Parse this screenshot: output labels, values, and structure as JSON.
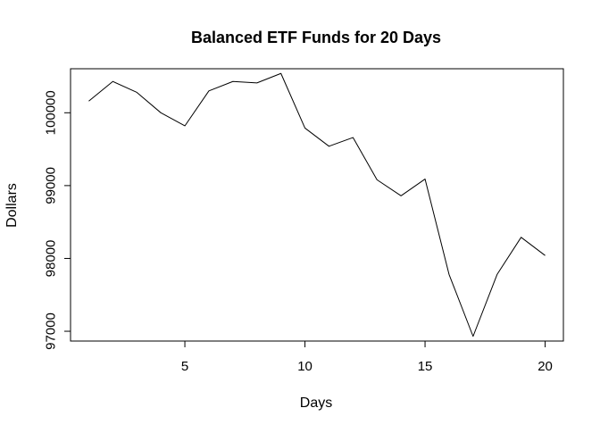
{
  "chart_data": {
    "type": "line",
    "title": "Balanced ETF Funds for 20 Days",
    "xlabel": "Days",
    "ylabel": "Dollars",
    "x": [
      1,
      2,
      3,
      4,
      5,
      6,
      7,
      8,
      9,
      10,
      11,
      12,
      13,
      14,
      15,
      16,
      17,
      18,
      19,
      20
    ],
    "series": [
      {
        "values": [
          100160,
          100430,
          100280,
          100000,
          99820,
          100300,
          100430,
          100410,
          100540,
          99790,
          99540,
          99660,
          99080,
          98860,
          99090,
          97780,
          96930,
          97780,
          98290,
          98040
        ]
      }
    ],
    "xlim": [
      0.24,
      20.76
    ],
    "ylim": [
      96865.6,
      100604.4
    ],
    "xticks": [
      5,
      10,
      15,
      20
    ],
    "yticks": [
      97000,
      98000,
      99000,
      100000
    ],
    "xtick_labels": [
      "5",
      "10",
      "15",
      "20"
    ],
    "ytick_labels": [
      "97000",
      "98000",
      "99000",
      "100000"
    ],
    "line_color": "#000000",
    "grid": false,
    "legend": "none"
  }
}
